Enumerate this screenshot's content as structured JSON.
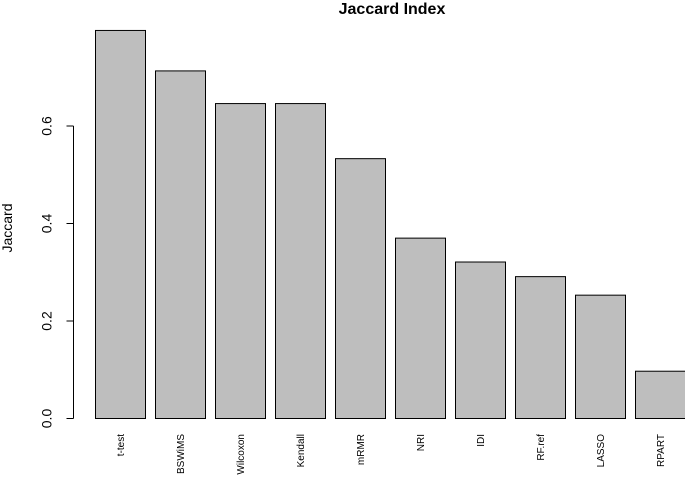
{
  "chart_data": {
    "type": "bar",
    "title": "Jaccard Index",
    "xlabel": "",
    "ylabel": "Jaccard",
    "categories": [
      "t-test",
      "BSWiMS",
      "Wilcoxon",
      "Kendall",
      "mRMR",
      "NRI",
      "IDI",
      "RF.ref",
      "LASSO",
      "RPART"
    ],
    "values": [
      0.796,
      0.713,
      0.646,
      0.646,
      0.533,
      0.37,
      0.321,
      0.291,
      0.253,
      0.097
    ],
    "yticks": [
      0.0,
      0.2,
      0.4,
      0.6
    ],
    "ytick_labels": [
      "0.0",
      "0.2",
      "0.4",
      "0.6"
    ],
    "ylim": [
      0,
      0.8
    ],
    "grid": false,
    "legend": "none",
    "bar_color": "#bebebe",
    "edge_color": "#000000"
  }
}
